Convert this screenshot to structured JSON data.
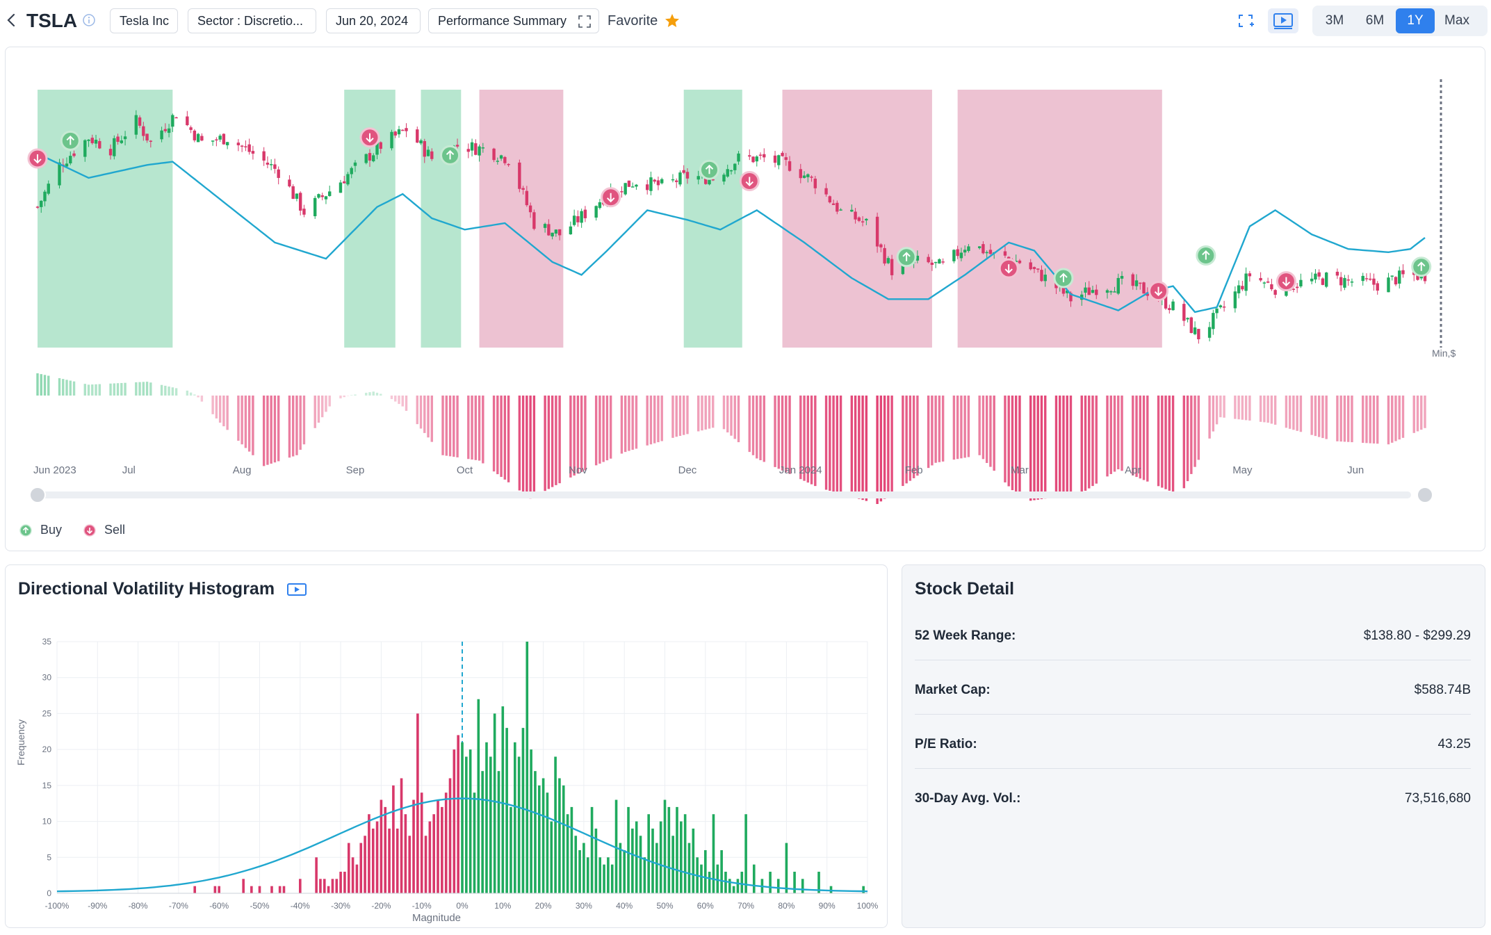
{
  "header": {
    "ticker": "TSLA",
    "company": "Tesla Inc",
    "sector": "Sector : Discretio...",
    "date": "Jun 20, 2024",
    "view": "Performance Summary",
    "favorite_label": "Favorite",
    "periods": [
      "3M",
      "6M",
      "1Y",
      "Max"
    ],
    "active_period": "1Y"
  },
  "colors": {
    "up": "#1faa5e",
    "down": "#d8386a",
    "buy_zone": "#b7e6cf",
    "sell_zone": "#edc2d2",
    "line": "#20a7cf",
    "accent": "#2f80ed",
    "star": "#f59e0b"
  },
  "legend": {
    "buy": "Buy",
    "sell": "Sell"
  },
  "chart_data": [
    {
      "type": "candlestick",
      "title": "",
      "x_labels": [
        "Jun 2023",
        "Jul",
        "Aug",
        "Sep",
        "Oct",
        "Nov",
        "Dec",
        "Jan 2024",
        "Feb",
        "Mar",
        "Apr",
        "May",
        "Jun"
      ],
      "x_range": [
        "2023-06-06",
        "2024-06-20"
      ],
      "y_axis_label": "Min,$",
      "zones": [
        {
          "type": "buy",
          "start": "2023-06-06",
          "end": "2023-07-13"
        },
        {
          "type": "buy",
          "start": "2023-08-29",
          "end": "2023-09-12"
        },
        {
          "type": "buy",
          "start": "2023-09-19",
          "end": "2023-09-30"
        },
        {
          "type": "sell",
          "start": "2023-10-05",
          "end": "2023-10-28"
        },
        {
          "type": "buy",
          "start": "2023-11-30",
          "end": "2023-12-16"
        },
        {
          "type": "sell",
          "start": "2023-12-27",
          "end": "2024-02-06"
        },
        {
          "type": "sell",
          "start": "2024-02-13",
          "end": "2024-04-09"
        }
      ],
      "price_series": [
        [
          "2023-06-06",
          222
        ],
        [
          "2023-06-12",
          248
        ],
        [
          "2023-06-20",
          265
        ],
        [
          "2023-06-26",
          258
        ],
        [
          "2023-07-03",
          275
        ],
        [
          "2023-07-07",
          262
        ],
        [
          "2023-07-14",
          280
        ],
        [
          "2023-07-21",
          262
        ],
        [
          "2023-07-28",
          265
        ],
        [
          "2023-08-04",
          255
        ],
        [
          "2023-08-11",
          244
        ],
        [
          "2023-08-18",
          219
        ],
        [
          "2023-08-25",
          232
        ],
        [
          "2023-09-01",
          246
        ],
        [
          "2023-09-08",
          260
        ],
        [
          "2023-09-15",
          270
        ],
        [
          "2023-09-22",
          252
        ],
        [
          "2023-09-29",
          260
        ],
        [
          "2023-10-06",
          258
        ],
        [
          "2023-10-13",
          252
        ],
        [
          "2023-10-20",
          212
        ],
        [
          "2023-10-27",
          205
        ],
        [
          "2023-11-03",
          218
        ],
        [
          "2023-11-10",
          232
        ],
        [
          "2023-11-17",
          238
        ],
        [
          "2023-11-24",
          235
        ],
        [
          "2023-12-01",
          241
        ],
        [
          "2023-12-08",
          240
        ],
        [
          "2023-12-15",
          252
        ],
        [
          "2023-12-22",
          252
        ],
        [
          "2023-12-29",
          248
        ],
        [
          "2024-01-05",
          237
        ],
        [
          "2024-01-12",
          219
        ],
        [
          "2024-01-19",
          212
        ],
        [
          "2024-01-26",
          183
        ],
        [
          "2024-02-02",
          188
        ],
        [
          "2024-02-09",
          185
        ],
        [
          "2024-02-16",
          200
        ],
        [
          "2024-02-23",
          192
        ],
        [
          "2024-03-01",
          188
        ],
        [
          "2024-03-08",
          178
        ],
        [
          "2024-03-15",
          165
        ],
        [
          "2024-03-22",
          172
        ],
        [
          "2024-03-29",
          175
        ],
        [
          "2024-04-05",
          170
        ],
        [
          "2024-04-12",
          160
        ],
        [
          "2024-04-19",
          142
        ],
        [
          "2024-04-26",
          160
        ],
        [
          "2024-05-03",
          180
        ],
        [
          "2024-05-10",
          172
        ],
        [
          "2024-05-17",
          175
        ],
        [
          "2024-05-24",
          178
        ],
        [
          "2024-05-31",
          176
        ],
        [
          "2024-06-07",
          174
        ],
        [
          "2024-06-14",
          179
        ],
        [
          "2024-06-20",
          180
        ]
      ],
      "trend_series": [
        [
          "2023-06-06",
          255
        ],
        [
          "2023-06-20",
          240
        ],
        [
          "2023-07-06",
          248
        ],
        [
          "2023-07-13",
          250
        ],
        [
          "2023-07-27",
          225
        ],
        [
          "2023-08-10",
          200
        ],
        [
          "2023-08-24",
          190
        ],
        [
          "2023-09-07",
          222
        ],
        [
          "2023-09-14",
          230
        ],
        [
          "2023-09-22",
          215
        ],
        [
          "2023-10-01",
          208
        ],
        [
          "2023-10-12",
          212
        ],
        [
          "2023-10-25",
          188
        ],
        [
          "2023-11-02",
          180
        ],
        [
          "2023-11-09",
          195
        ],
        [
          "2023-11-20",
          220
        ],
        [
          "2023-12-01",
          214
        ],
        [
          "2023-12-10",
          208
        ],
        [
          "2023-12-20",
          220
        ],
        [
          "2024-01-02",
          200
        ],
        [
          "2024-01-15",
          178
        ],
        [
          "2024-01-25",
          165
        ],
        [
          "2024-02-05",
          165
        ],
        [
          "2024-02-15",
          180
        ],
        [
          "2024-02-27",
          200
        ],
        [
          "2024-03-05",
          195
        ],
        [
          "2024-03-15",
          168
        ],
        [
          "2024-03-28",
          158
        ],
        [
          "2024-04-06",
          170
        ],
        [
          "2024-04-12",
          173
        ],
        [
          "2024-04-18",
          157
        ],
        [
          "2024-04-24",
          160
        ],
        [
          "2024-05-03",
          210
        ],
        [
          "2024-05-10",
          220
        ],
        [
          "2024-05-20",
          205
        ],
        [
          "2024-05-30",
          196
        ],
        [
          "2024-06-10",
          194
        ],
        [
          "2024-06-16",
          196
        ],
        [
          "2024-06-20",
          203
        ]
      ],
      "signals": [
        {
          "date": "2023-06-06",
          "type": "sell",
          "price": 252
        },
        {
          "date": "2023-06-15",
          "type": "buy",
          "price": 263
        },
        {
          "date": "2023-09-05",
          "type": "sell",
          "price": 265
        },
        {
          "date": "2023-09-27",
          "type": "buy",
          "price": 254
        },
        {
          "date": "2023-11-10",
          "type": "sell",
          "price": 228
        },
        {
          "date": "2023-12-07",
          "type": "buy",
          "price": 245
        },
        {
          "date": "2023-12-18",
          "type": "sell",
          "price": 238
        },
        {
          "date": "2024-01-30",
          "type": "buy",
          "price": 191
        },
        {
          "date": "2024-02-27",
          "type": "sell",
          "price": 184
        },
        {
          "date": "2024-03-13",
          "type": "buy",
          "price": 178
        },
        {
          "date": "2024-04-08",
          "type": "sell",
          "price": 170
        },
        {
          "date": "2024-04-21",
          "type": "buy",
          "price": 192
        },
        {
          "date": "2024-05-13",
          "type": "sell",
          "price": 176
        },
        {
          "date": "2024-06-19",
          "type": "buy",
          "price": 185
        }
      ]
    },
    {
      "type": "area",
      "title": "",
      "unit": "momentum",
      "y_range": [
        -1.0,
        0.45
      ],
      "x_range": [
        "2023-06-06",
        "2024-06-20"
      ],
      "series": [
        [
          "2023-06-06",
          0.45
        ],
        [
          "2023-06-20",
          0.22
        ],
        [
          "2023-07-06",
          0.28
        ],
        [
          "2023-07-17",
          0.1
        ],
        [
          "2023-07-26",
          -0.25
        ],
        [
          "2023-08-07",
          -0.65
        ],
        [
          "2023-08-16",
          -0.55
        ],
        [
          "2023-08-26",
          -0.05
        ],
        [
          "2023-09-06",
          0.08
        ],
        [
          "2023-09-14",
          -0.1
        ],
        [
          "2023-09-25",
          -0.55
        ],
        [
          "2023-10-05",
          -0.6
        ],
        [
          "2023-10-19",
          -0.95
        ],
        [
          "2023-11-01",
          -0.72
        ],
        [
          "2023-11-14",
          -0.52
        ],
        [
          "2023-11-28",
          -0.38
        ],
        [
          "2023-12-10",
          -0.28
        ],
        [
          "2023-12-20",
          -0.58
        ],
        [
          "2024-01-06",
          -0.85
        ],
        [
          "2024-01-22",
          -1.0
        ],
        [
          "2024-02-07",
          -0.62
        ],
        [
          "2024-02-19",
          -0.55
        ],
        [
          "2024-03-02",
          -0.98
        ],
        [
          "2024-03-18",
          -0.9
        ],
        [
          "2024-03-28",
          -0.68
        ],
        [
          "2024-04-14",
          -0.92
        ],
        [
          "2024-04-25",
          -0.2
        ],
        [
          "2024-05-08",
          -0.25
        ],
        [
          "2024-05-26",
          -0.42
        ],
        [
          "2024-06-10",
          -0.45
        ],
        [
          "2024-06-20",
          -0.3
        ]
      ]
    },
    {
      "type": "bar",
      "title": "Directional Volatility Histogram",
      "xlabel": "Magnitude",
      "ylabel": "Frequency",
      "xlim": [
        -100,
        100
      ],
      "ylim": [
        0,
        35
      ],
      "x_ticks": [
        "-100%",
        "-90%",
        "-80%",
        "-70%",
        "-60%",
        "-50%",
        "-40%",
        "-30%",
        "-20%",
        "-10%",
        "0%",
        "10%",
        "20%",
        "30%",
        "40%",
        "50%",
        "60%",
        "70%",
        "80%",
        "90%",
        "100%"
      ],
      "y_ticks": [
        0,
        5,
        10,
        15,
        20,
        25,
        30,
        35
      ],
      "marker": 0,
      "series": [
        {
          "name": "negative",
          "color": "#d8386a",
          "x": [
            -66,
            -61,
            -60,
            -54,
            -52,
            -50,
            -47,
            -45,
            -44,
            -40,
            -36,
            -35,
            -34,
            -33,
            -32,
            -31,
            -30,
            -29,
            -28,
            -27,
            -26,
            -25,
            -24,
            -23,
            -22,
            -21,
            -20,
            -19,
            -18,
            -17,
            -16,
            -15,
            -14,
            -13,
            -12,
            -11,
            -10,
            -9,
            -8,
            -7,
            -6,
            -5,
            -4,
            -3,
            -2,
            -1
          ],
          "values": [
            1,
            1,
            1,
            2,
            1,
            1,
            1,
            1,
            1,
            2,
            5,
            2,
            2,
            1,
            2,
            2,
            3,
            3,
            7,
            5,
            4,
            7,
            8,
            11,
            9,
            10,
            13,
            12,
            9,
            15,
            9,
            16,
            11,
            8,
            13,
            25,
            14,
            8,
            10,
            11,
            13,
            12,
            14,
            16,
            20,
            22
          ]
        },
        {
          "name": "positive",
          "color": "#1faa5e",
          "x": [
            0,
            1,
            2,
            3,
            4,
            5,
            6,
            7,
            8,
            9,
            10,
            11,
            12,
            13,
            14,
            15,
            16,
            17,
            18,
            19,
            20,
            21,
            22,
            23,
            24,
            25,
            26,
            27,
            28,
            29,
            30,
            31,
            32,
            33,
            34,
            35,
            36,
            37,
            38,
            39,
            40,
            41,
            42,
            43,
            44,
            45,
            46,
            47,
            48,
            49,
            50,
            51,
            52,
            53,
            54,
            55,
            56,
            57,
            58,
            59,
            60,
            61,
            62,
            63,
            64,
            65,
            66,
            67,
            68,
            69,
            70,
            72,
            74,
            76,
            78,
            80,
            82,
            84,
            88,
            91,
            99
          ],
          "values": [
            21,
            19,
            20,
            14,
            27,
            17,
            21,
            19,
            25,
            17,
            26,
            23,
            12,
            21,
            19,
            23,
            35,
            20,
            17,
            15,
            16,
            14,
            10,
            19,
            16,
            15,
            11,
            12,
            8,
            6,
            7,
            5,
            12,
            9,
            5,
            4,
            5,
            4,
            13,
            7,
            6,
            12,
            9,
            10,
            8,
            5,
            11,
            9,
            7,
            10,
            13,
            12,
            8,
            12,
            10,
            11,
            7,
            9,
            5,
            4,
            6,
            3,
            11,
            4,
            6,
            3,
            2,
            1,
            2,
            3,
            11,
            4,
            2,
            3,
            2,
            7,
            3,
            2,
            3,
            1,
            1
          ]
        }
      ],
      "curve": [
        [
          -100,
          0.3
        ],
        [
          -90,
          0.6
        ],
        [
          -80,
          1.2
        ],
        [
          -70,
          2.2
        ],
        [
          -60,
          3.5
        ],
        [
          -50,
          5.0
        ],
        [
          -40,
          7.0
        ],
        [
          -30,
          9.2
        ],
        [
          -20,
          11.2
        ],
        [
          -10,
          12.6
        ],
        [
          0,
          13.0
        ],
        [
          10,
          12.4
        ],
        [
          20,
          11.2
        ],
        [
          30,
          9.6
        ],
        [
          40,
          7.6
        ],
        [
          50,
          5.6
        ],
        [
          60,
          3.8
        ],
        [
          70,
          2.4
        ],
        [
          80,
          1.3
        ],
        [
          90,
          0.6
        ],
        [
          100,
          0.2
        ]
      ]
    }
  ],
  "stock_detail": {
    "title": "Stock Detail",
    "rows": [
      {
        "label": "52 Week Range:",
        "value": "$138.80 - $299.29"
      },
      {
        "label": "Market Cap:",
        "value": "$588.74B"
      },
      {
        "label": "P/E Ratio:",
        "value": "43.25"
      },
      {
        "label": "30-Day Avg. Vol.:",
        "value": "73,516,680"
      }
    ]
  }
}
